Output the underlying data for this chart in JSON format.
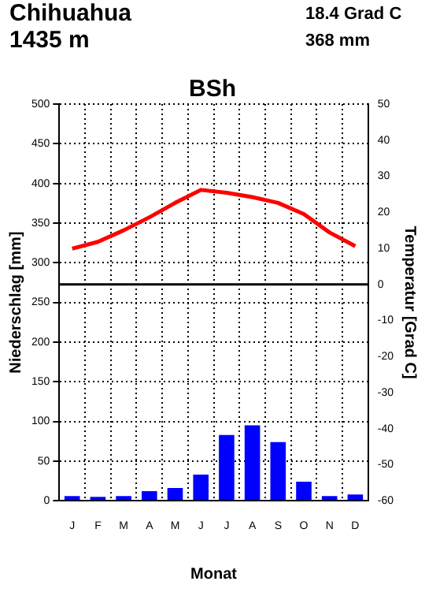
{
  "chart_data": {
    "type": "bar",
    "title": "Chihuahua",
    "subtitle": "1435 m",
    "annotations": [
      "18.4 Grad C",
      "368 mm",
      "BSh"
    ],
    "xlabel": "Monat",
    "ylabel": "Niederschlag [mm]",
    "y2label": "Temperatur [Grad C]",
    "categories": [
      "J",
      "F",
      "M",
      "A",
      "M",
      "J",
      "J",
      "A",
      "S",
      "O",
      "N",
      "D"
    ],
    "series": [
      {
        "type": "bar",
        "color": "#0000ff",
        "values": [
          6,
          5,
          6,
          12,
          16,
          33,
          83,
          95,
          74,
          24,
          6,
          8
        ]
      },
      {
        "type": "line",
        "axis": "y2",
        "color": "#ff0000",
        "values": [
          9.9,
          11.8,
          15,
          18.6,
          22.6,
          26.2,
          25.4,
          24.2,
          22.6,
          19.5,
          14.4,
          10.6
        ]
      }
    ],
    "ylim": [
      0,
      500
    ],
    "yticks": [
      0,
      50,
      100,
      150,
      200,
      250,
      300,
      350,
      400,
      450,
      500
    ],
    "y2lim": [
      -60,
      50
    ],
    "y2ticks": [
      -60,
      -50,
      -40,
      -30,
      -20,
      -10,
      0,
      10,
      20,
      30,
      40,
      50
    ],
    "ref_lines": [
      {
        "axis": "y2",
        "value": 0,
        "color": "#000000"
      }
    ],
    "grid": true,
    "legend": false,
    "marker": "none",
    "line_style": "solid"
  }
}
